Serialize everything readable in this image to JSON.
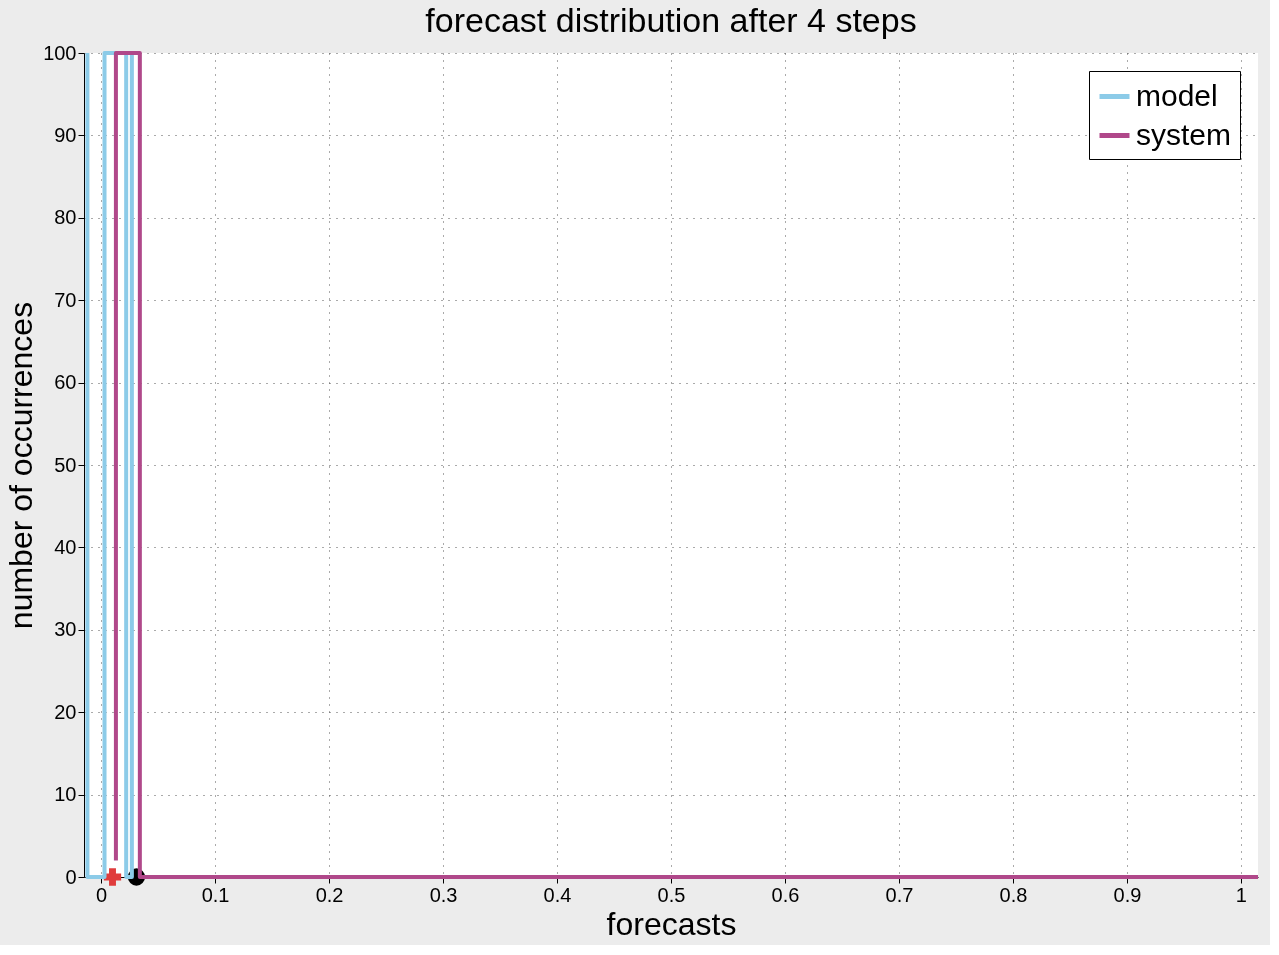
{
  "chart_data": {
    "type": "line",
    "title": "forecast distribution after 4 steps",
    "xlabel": "forecasts",
    "ylabel": "number of occurrences",
    "series": [
      {
        "name": "model",
        "color": "#8ccbe8",
        "x": [
          -0.012,
          -0.012,
          0.003,
          0.003,
          0.022,
          0.022,
          0.027,
          0.027
        ],
        "values": [
          100,
          0,
          0,
          100,
          100,
          0,
          0,
          100
        ]
      },
      {
        "name": "system",
        "color": "#b0488a",
        "x": [
          0.013,
          0.013,
          0.034,
          0.034,
          1.015
        ],
        "values": [
          2,
          100,
          100,
          0,
          0
        ]
      },
      {
        "type": "scatter",
        "marker": "cross",
        "color": "#e03c3c",
        "x": [
          0.01
        ],
        "values": [
          0
        ]
      },
      {
        "type": "scatter",
        "marker": "circle",
        "color": "#000000",
        "x": [
          0.031
        ],
        "values": [
          0
        ]
      }
    ],
    "xlim": [
      -0.015,
      1.015
    ],
    "ylim": [
      0,
      100
    ],
    "xticks": [
      0,
      0.1,
      0.2,
      0.3,
      0.4,
      0.5,
      0.6,
      0.7,
      0.8,
      0.9,
      1
    ],
    "yticks": [
      0,
      10,
      20,
      30,
      40,
      50,
      60,
      70,
      80,
      90,
      100
    ],
    "grid": true,
    "legend": "top right",
    "line_style": "solid"
  }
}
